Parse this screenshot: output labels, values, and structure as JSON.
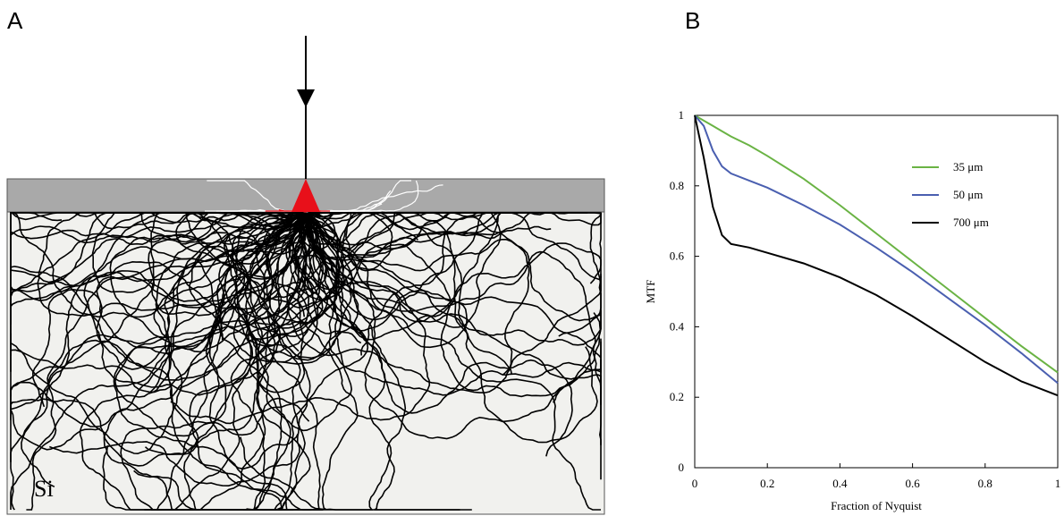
{
  "panel_a": {
    "label": "A",
    "material": "Si"
  },
  "chart_data": {
    "type": "line",
    "label": "B",
    "xlabel": "Fraction of Nyquist",
    "ylabel": "MTF",
    "x": [
      0,
      0.025,
      0.05,
      0.075,
      0.1,
      0.15,
      0.2,
      0.3,
      0.4,
      0.5,
      0.6,
      0.7,
      0.8,
      0.9,
      1
    ],
    "series": [
      {
        "name": "35 μm",
        "color": "#6ab344",
        "values": [
          1,
          0.985,
          0.97,
          0.955,
          0.94,
          0.915,
          0.885,
          0.82,
          0.745,
          0.665,
          0.585,
          0.505,
          0.425,
          0.345,
          0.27
        ]
      },
      {
        "name": "50 μm",
        "color": "#4a5fb0",
        "values": [
          1,
          0.97,
          0.9,
          0.855,
          0.835,
          0.815,
          0.795,
          0.745,
          0.69,
          0.625,
          0.555,
          0.48,
          0.405,
          0.325,
          0.24
        ]
      },
      {
        "name": "700 μm",
        "color": "#000000",
        "values": [
          1,
          0.88,
          0.74,
          0.66,
          0.635,
          0.625,
          0.61,
          0.58,
          0.54,
          0.49,
          0.43,
          0.365,
          0.3,
          0.245,
          0.205
        ]
      }
    ],
    "xlim": [
      0,
      1
    ],
    "ylim": [
      0,
      1
    ],
    "xticks": [
      0,
      0.2,
      0.4,
      0.6,
      0.8,
      1
    ],
    "yticks": [
      0,
      0.2,
      0.4,
      0.6,
      0.8,
      1
    ],
    "legend": "upper right"
  }
}
